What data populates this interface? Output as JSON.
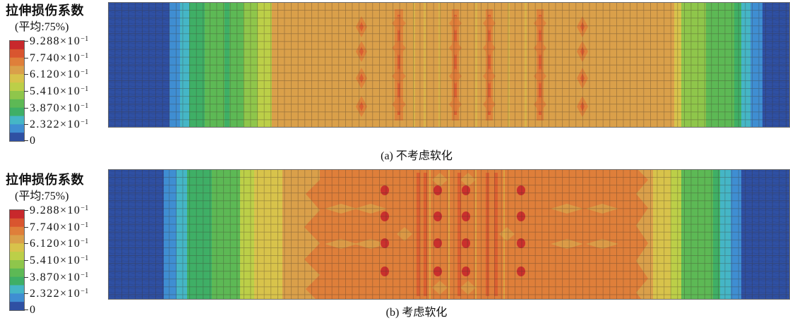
{
  "panels": [
    {
      "legend": {
        "title": "拉伸损伤系数",
        "subtitle": "(平均:75%)",
        "labels": [
          {
            "text": "9.288×10",
            "exp": "−1"
          },
          {
            "text": "7.740×10",
            "exp": "−1"
          },
          {
            "text": "6.120×10",
            "exp": "−1"
          },
          {
            "text": "5.410×10",
            "exp": "−1"
          },
          {
            "text": "3.870×10",
            "exp": "−1"
          },
          {
            "text": "2.322×10",
            "exp": "−1"
          },
          {
            "text": "0"
          }
        ]
      },
      "caption": "(a) 不考虑软化"
    },
    {
      "legend": {
        "title": "拉伸损伤系数",
        "subtitle": "(平均:75%)",
        "labels": [
          {
            "text": "9.288×10",
            "exp": "−1"
          },
          {
            "text": "7.740×10",
            "exp": "−1"
          },
          {
            "text": "6.120×10",
            "exp": "−1"
          },
          {
            "text": "5.410×10",
            "exp": "−1"
          },
          {
            "text": "3.870×10",
            "exp": "−1"
          },
          {
            "text": "2.322×10",
            "exp": "−1"
          },
          {
            "text": "0"
          }
        ]
      },
      "caption": "(b) 考虑软化"
    }
  ],
  "colors": {
    "scale": [
      "#c8282c",
      "#d9552f",
      "#df7f3a",
      "#daa04a",
      "#d8c34b",
      "#bccf48",
      "#8fc64b",
      "#5db955",
      "#3faf66",
      "#45b6c6",
      "#3f8ed2",
      "#2f50a3"
    ],
    "mesh_line": "#3b2f25",
    "border": "#6b6b6b"
  }
}
